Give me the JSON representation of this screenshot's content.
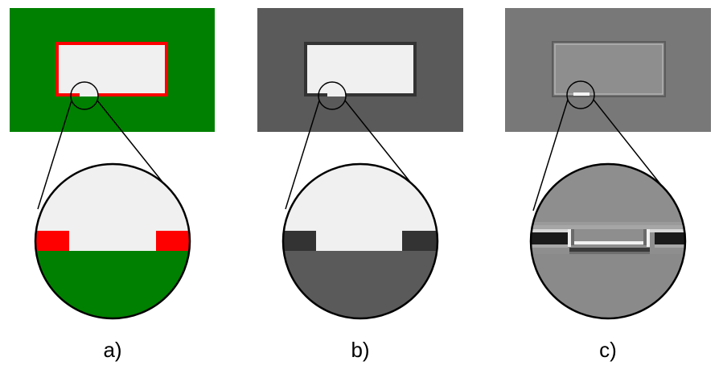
{
  "panels": [
    {
      "id": "a",
      "label": "a)",
      "colors": {
        "background": "#008000",
        "rect_border": "#ff0000",
        "rect_fill": "#f0f0f0",
        "gap_fill": "#f0f0f0"
      }
    },
    {
      "id": "b",
      "label": "b)",
      "colors": {
        "background": "#5a5a5a",
        "rect_border": "#333333",
        "rect_fill": "#f0f0f0",
        "gap_fill": "#f0f0f0"
      }
    },
    {
      "id": "c",
      "label": "c)",
      "colors": {
        "background": "#787878",
        "rect_border": "#6a6a6a",
        "rect_fill": "#8e8e8e",
        "gap_fill": "#f4f4f4"
      }
    }
  ]
}
